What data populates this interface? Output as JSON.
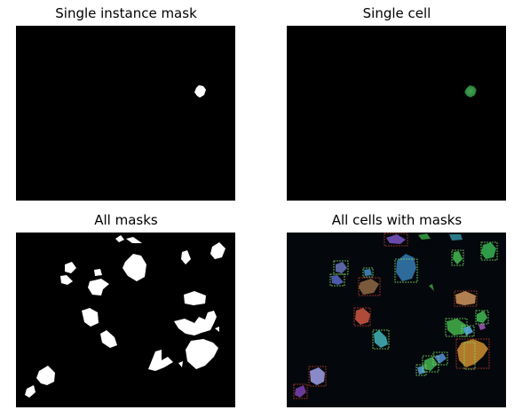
{
  "panels": [
    {
      "title": "Single instance mask"
    },
    {
      "title": "Single cell"
    },
    {
      "title": "All masks"
    },
    {
      "title": "All cells with masks"
    }
  ],
  "colors": {
    "background": "#000000",
    "mask": "#ffffff",
    "cell_green": "#3fae4a",
    "box_green": "#7ddc6a",
    "box_red": "#c0392b"
  }
}
